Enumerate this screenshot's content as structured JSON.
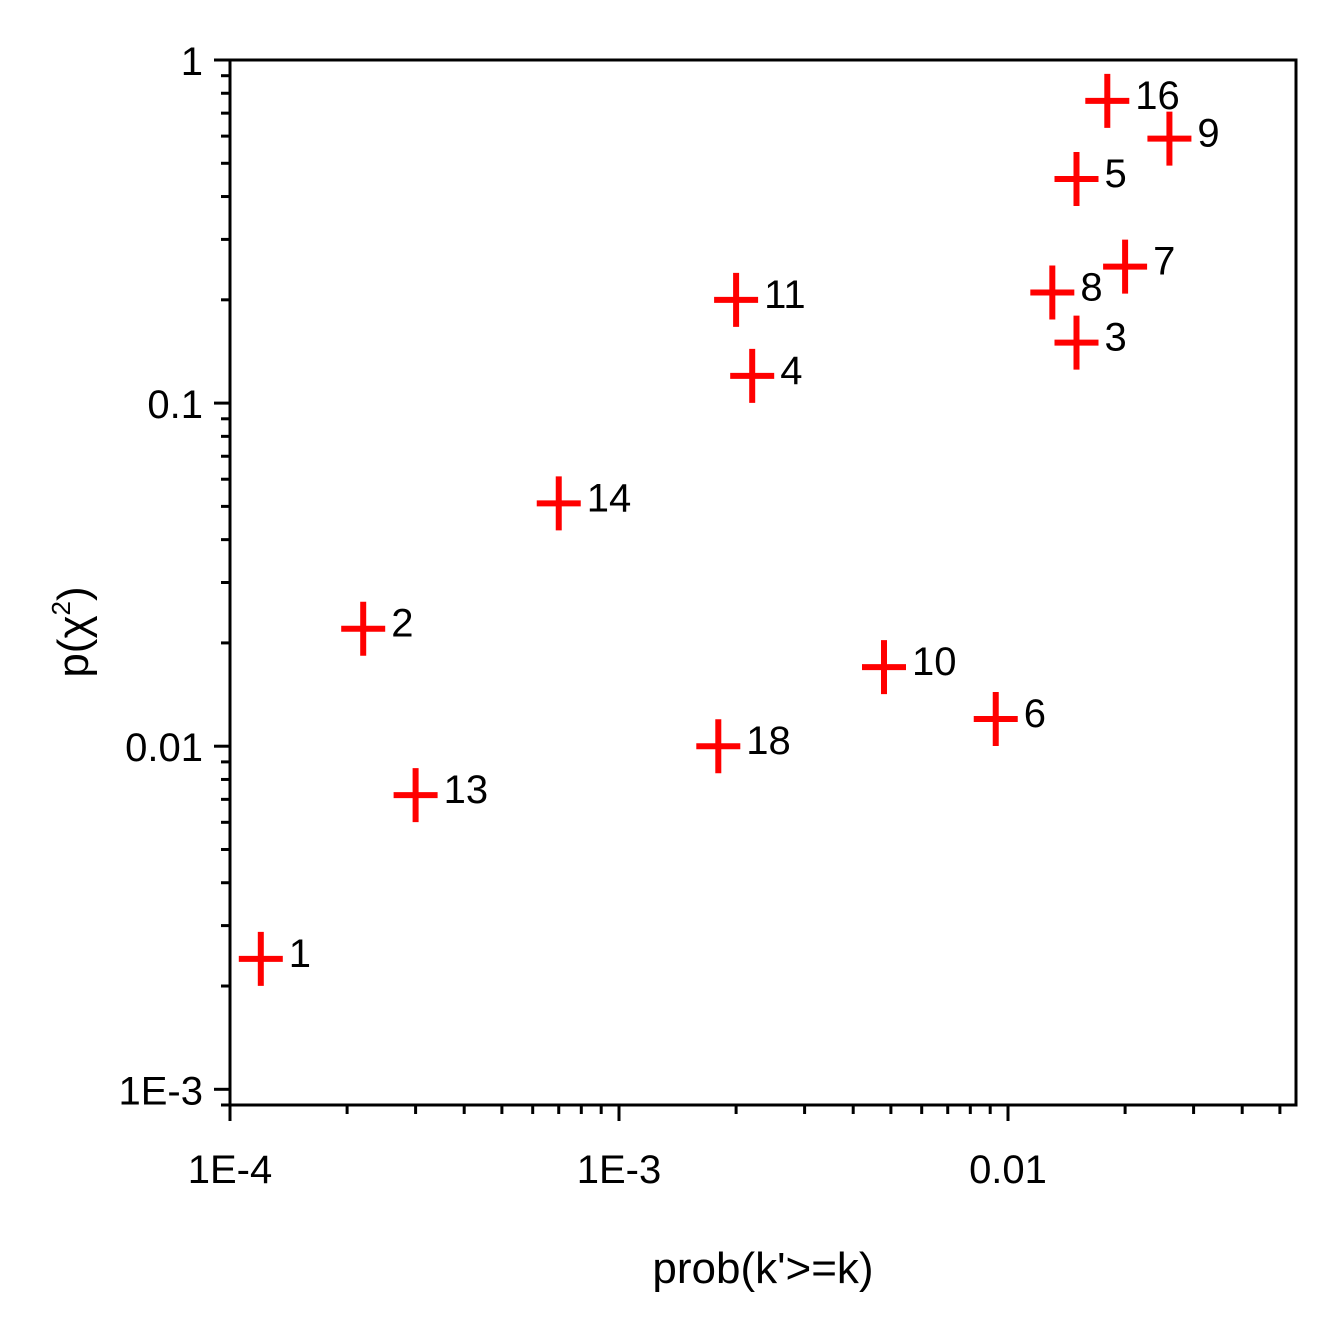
{
  "chart_data": {
    "type": "scatter",
    "xlabel": "prob(k'>=k)",
    "ylabel_base": "p(χ",
    "ylabel_sup": "2",
    "ylabel_close": ")",
    "x_scale": "log",
    "y_scale": "log",
    "xlim": [
      0.0001,
      0.055
    ],
    "ylim": [
      0.0009,
      1
    ],
    "x_ticks": [
      {
        "value": 0.0001,
        "label": "1E-4"
      },
      {
        "value": 0.001,
        "label": "1E-3"
      },
      {
        "value": 0.01,
        "label": "0.01"
      }
    ],
    "y_ticks": [
      {
        "value": 0.001,
        "label": "1E-3"
      },
      {
        "value": 0.01,
        "label": "0.01"
      },
      {
        "value": 0.1,
        "label": "0.1"
      },
      {
        "value": 1,
        "label": "1"
      }
    ],
    "grid": false,
    "marker_color": "#ff0000",
    "points": [
      {
        "label": "1",
        "x": 0.00012,
        "y": 0.0024
      },
      {
        "label": "2",
        "x": 0.00022,
        "y": 0.022
      },
      {
        "label": "3",
        "x": 0.015,
        "y": 0.15
      },
      {
        "label": "4",
        "x": 0.0022,
        "y": 0.12
      },
      {
        "label": "5",
        "x": 0.015,
        "y": 0.45
      },
      {
        "label": "6",
        "x": 0.0093,
        "y": 0.012
      },
      {
        "label": "7",
        "x": 0.02,
        "y": 0.25
      },
      {
        "label": "8",
        "x": 0.013,
        "y": 0.21
      },
      {
        "label": "9",
        "x": 0.026,
        "y": 0.59
      },
      {
        "label": "10",
        "x": 0.0048,
        "y": 0.017
      },
      {
        "label": "11",
        "x": 0.002,
        "y": 0.2
      },
      {
        "label": "13",
        "x": 0.0003,
        "y": 0.0072
      },
      {
        "label": "14",
        "x": 0.0007,
        "y": 0.051
      },
      {
        "label": "16",
        "x": 0.018,
        "y": 0.76
      },
      {
        "label": "18",
        "x": 0.0018,
        "y": 0.01
      }
    ]
  }
}
